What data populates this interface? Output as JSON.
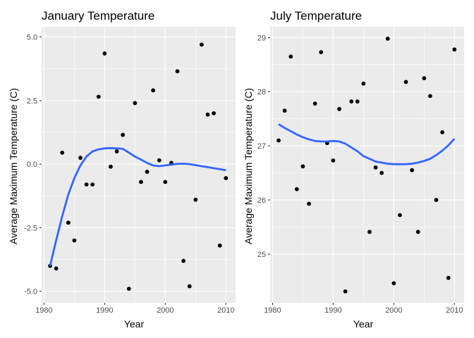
{
  "chart_data": [
    {
      "type": "scatter",
      "title": "January Temperature",
      "xlabel": "Year",
      "ylabel": "Average Maximum Temperature (C)",
      "xlim": [
        1979.6,
        2011.6
      ],
      "ylim": [
        -5.45,
        5.4
      ],
      "xticks": [
        1980,
        1990,
        2000,
        2010
      ],
      "xtick_labels": [
        "1980",
        "1990",
        "2000",
        "2010"
      ],
      "yticks": [
        -5,
        -2.5,
        0,
        2.5,
        5
      ],
      "ytick_labels": [
        "-5.0",
        "-2.5",
        "0.0",
        "2.5",
        "5.0"
      ],
      "points": {
        "x": [
          1981,
          1982,
          1983,
          1984,
          1985,
          1986,
          1987,
          1988,
          1989,
          1990,
          1991,
          1992,
          1993,
          1994,
          1995,
          1996,
          1997,
          1998,
          1999,
          2000,
          2001,
          2002,
          2003,
          2004,
          2005,
          2006,
          2007,
          2008,
          2009,
          2010
        ],
        "y": [
          -4.0,
          -4.1,
          0.45,
          -2.3,
          -3.0,
          0.25,
          -0.8,
          -0.8,
          2.65,
          4.35,
          -0.1,
          0.5,
          1.15,
          -4.9,
          2.4,
          -0.7,
          -0.3,
          2.9,
          0.15,
          -0.7,
          0.05,
          3.65,
          -3.8,
          -4.8,
          -1.4,
          4.7,
          1.95,
          2.0,
          -3.2,
          -0.55
        ]
      },
      "smooth_line": {
        "color": "#3366FF",
        "x": [
          1981,
          1982,
          1983,
          1984,
          1985,
          1986,
          1987,
          1988,
          1989,
          1990,
          1991,
          1992,
          1993,
          1994,
          1995,
          1996,
          1997,
          1998,
          1999,
          2000,
          2001,
          2002,
          2003,
          2004,
          2005,
          2006,
          2007,
          2008,
          2009,
          2010
        ],
        "y": [
          -4.0,
          -3.0,
          -2.05,
          -1.2,
          -0.55,
          -0.05,
          0.3,
          0.5,
          0.58,
          0.62,
          0.63,
          0.62,
          0.6,
          0.45,
          0.3,
          0.18,
          0.05,
          -0.05,
          -0.08,
          -0.05,
          -0.02,
          0.01,
          0.02,
          0.0,
          -0.04,
          -0.08,
          -0.12,
          -0.16,
          -0.2,
          -0.24
        ]
      }
    },
    {
      "type": "scatter",
      "title": "July Temperature",
      "xlabel": "Year",
      "ylabel": "Average Maximum Temperature (C)",
      "xlim": [
        1979.6,
        2011.6
      ],
      "ylim": [
        24.1,
        29.2
      ],
      "xticks": [
        1980,
        1990,
        2000,
        2010
      ],
      "xtick_labels": [
        "1980",
        "1990",
        "2000",
        "2010"
      ],
      "yticks": [
        25,
        26,
        27,
        28,
        29
      ],
      "ytick_labels": [
        "25",
        "26",
        "27",
        "28",
        "29"
      ],
      "points": {
        "x": [
          1981,
          1982,
          1983,
          1984,
          1985,
          1986,
          1987,
          1988,
          1989,
          1990,
          1991,
          1992,
          1993,
          1994,
          1995,
          1996,
          1997,
          1998,
          1999,
          2000,
          2001,
          2002,
          2003,
          2004,
          2005,
          2006,
          2007,
          2008,
          2009,
          2010
        ],
        "y": [
          27.1,
          27.65,
          28.65,
          26.2,
          26.62,
          25.93,
          27.78,
          28.73,
          27.05,
          26.73,
          27.68,
          24.31,
          27.82,
          27.82,
          28.15,
          25.41,
          26.6,
          26.5,
          28.98,
          24.46,
          25.72,
          28.18,
          26.55,
          25.41,
          28.25,
          27.92,
          26.0,
          27.25,
          24.56,
          28.78
        ]
      },
      "smooth_line": {
        "color": "#3366FF",
        "x": [
          1981,
          1982,
          1983,
          1984,
          1985,
          1986,
          1987,
          1988,
          1989,
          1990,
          1991,
          1992,
          1993,
          1994,
          1995,
          1996,
          1997,
          1998,
          1999,
          2000,
          2001,
          2002,
          2003,
          2004,
          2005,
          2006,
          2007,
          2008,
          2009,
          2010
        ],
        "y": [
          27.4,
          27.33,
          27.27,
          27.21,
          27.16,
          27.12,
          27.09,
          27.08,
          27.08,
          27.09,
          27.08,
          27.04,
          26.97,
          26.9,
          26.81,
          26.76,
          26.71,
          26.69,
          26.67,
          26.66,
          26.66,
          26.66,
          26.67,
          26.69,
          26.72,
          26.76,
          26.83,
          26.91,
          27.01,
          27.13
        ]
      }
    }
  ]
}
